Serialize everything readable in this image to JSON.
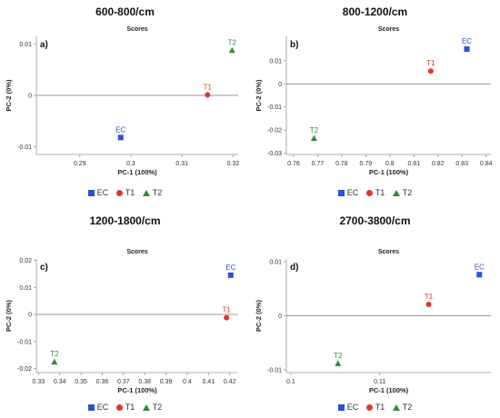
{
  "colors": {
    "EC": "#2a50d6",
    "T1": "#e0352b",
    "T2": "#2e8b3a",
    "axis": "#999999",
    "zero": "#777777"
  },
  "chart_data": [
    {
      "type": "scatter",
      "panel_title": "600-800/cm",
      "inner_title": "Scores",
      "letter": "a)",
      "xlabel": "PC-1 (100%)",
      "ylabel": "PC-2 (0%)",
      "xlim": [
        0.2815,
        0.321
      ],
      "ylim": [
        -0.0115,
        0.0115
      ],
      "xticks": [
        0.29,
        0.3,
        0.31,
        0.32
      ],
      "xtick_labels": [
        "0.29",
        "0.3",
        "0.31",
        "0.32"
      ],
      "yticks": [
        -0.01,
        0,
        0.01
      ],
      "ytick_labels": [
        "-0.01",
        "0",
        "0.01"
      ],
      "points": [
        {
          "label": "EC",
          "x": 0.298,
          "y": -0.0082,
          "marker": "square"
        },
        {
          "label": "T1",
          "x": 0.315,
          "y": 0.0001,
          "marker": "circle"
        },
        {
          "label": "T2",
          "x": 0.3198,
          "y": 0.0088,
          "marker": "triangle"
        }
      ],
      "legend": [
        "EC",
        "T1",
        "T2"
      ]
    },
    {
      "type": "scatter",
      "panel_title": "800-1200/cm",
      "inner_title": "Scores",
      "letter": "b)",
      "xlabel": "PC-1 (100%)",
      "ylabel": "PC-2 (0%)",
      "xlim": [
        0.757,
        0.842
      ],
      "ylim": [
        -0.0305,
        0.0205
      ],
      "xticks": [
        0.76,
        0.77,
        0.78,
        0.79,
        0.8,
        0.81,
        0.82,
        0.83,
        0.84
      ],
      "xtick_labels": [
        "0.76",
        "0.77",
        "0.78",
        "0.79",
        "0.8",
        "0.81",
        "0.82",
        "0.83",
        "0.84"
      ],
      "yticks": [
        -0.03,
        -0.02,
        -0.01,
        0,
        0.01
      ],
      "ytick_labels": [
        "-0.03",
        "-0.02",
        "-0.01",
        "0",
        "0.01"
      ],
      "points": [
        {
          "label": "EC",
          "x": 0.832,
          "y": 0.015,
          "marker": "square"
        },
        {
          "label": "T1",
          "x": 0.817,
          "y": 0.0055,
          "marker": "circle"
        },
        {
          "label": "T2",
          "x": 0.7685,
          "y": -0.0235,
          "marker": "triangle"
        }
      ],
      "legend": [
        "EC",
        "T1",
        "T2"
      ]
    },
    {
      "type": "scatter",
      "panel_title": "1200-1800/cm",
      "inner_title": "Scores",
      "letter": "c)",
      "xlabel": "PC-1 (100%)",
      "ylabel": "PC-2 (0%)",
      "xlim": [
        0.329,
        0.424
      ],
      "ylim": [
        -0.0215,
        0.0205
      ],
      "xticks": [
        0.33,
        0.34,
        0.35,
        0.36,
        0.37,
        0.38,
        0.39,
        0.4,
        0.41,
        0.42
      ],
      "xtick_labels": [
        "0.33",
        "0.34",
        "0.35",
        "0.36",
        "0.37",
        "0.38",
        "0.39",
        "0.4",
        "0.41",
        "0.42"
      ],
      "yticks": [
        -0.02,
        -0.01,
        0,
        0.01,
        0.02
      ],
      "ytick_labels": [
        "-0.02",
        "-0.01",
        "0",
        "0.01",
        "0.02"
      ],
      "points": [
        {
          "label": "EC",
          "x": 0.4205,
          "y": 0.0145,
          "marker": "square"
        },
        {
          "label": "T1",
          "x": 0.4185,
          "y": -0.0012,
          "marker": "circle"
        },
        {
          "label": "T2",
          "x": 0.3375,
          "y": -0.0175,
          "marker": "triangle"
        }
      ],
      "legend": [
        "EC",
        "T1",
        "T2"
      ]
    },
    {
      "type": "scatter",
      "panel_title": "2700-3800/cm",
      "inner_title": "Scores",
      "letter": "d)",
      "xlabel": "PC-1 (100%)",
      "ylabel": "PC-2 (0%)",
      "xlim": [
        0.0995,
        0.1225
      ],
      "ylim": [
        -0.0105,
        0.0105
      ],
      "xticks": [
        0.1,
        0.11
      ],
      "xtick_labels": [
        "0.1",
        "0.11"
      ],
      "yticks": [
        -0.01,
        0,
        0.01
      ],
      "ytick_labels": [
        "-0.01",
        "0",
        "0.01"
      ],
      "points": [
        {
          "label": "EC",
          "x": 0.1212,
          "y": 0.0076,
          "marker": "square"
        },
        {
          "label": "T1",
          "x": 0.1155,
          "y": 0.0021,
          "marker": "circle"
        },
        {
          "label": "T2",
          "x": 0.1053,
          "y": -0.0088,
          "marker": "triangle"
        }
      ],
      "legend": [
        "EC",
        "T1",
        "T2"
      ]
    }
  ]
}
